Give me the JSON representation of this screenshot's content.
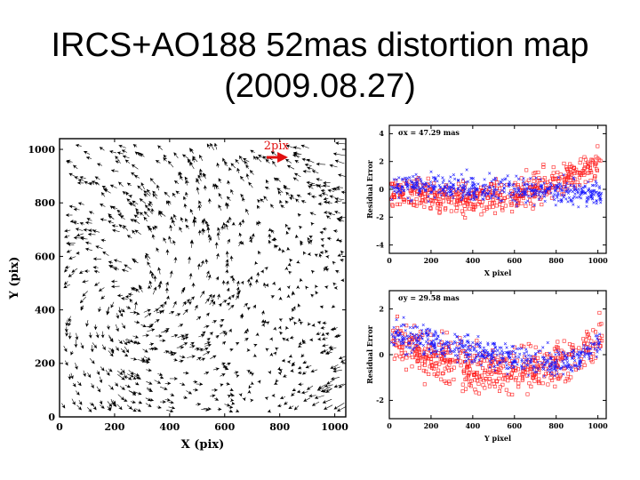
{
  "slide": {
    "title_line1": "IRCS+AO188 52mas distortion map",
    "title_line2": "(2009.08.27)"
  },
  "colors": {
    "ink": "#000000",
    "red": "#ff2020",
    "blue": "#1a1aff",
    "scale_arrow": "#e01010"
  },
  "chart_data": [
    {
      "type": "vector-field",
      "xlabel": "X (pix)",
      "ylabel": "Y (pix)",
      "xlim": [
        0,
        1040
      ],
      "ylim": [
        0,
        1040
      ],
      "xticks": [
        "0",
        "200",
        "400",
        "600",
        "800",
        "1000"
      ],
      "yticks": [
        "0",
        "200",
        "400",
        "600",
        "800",
        "1000"
      ],
      "scale_label": "2pix",
      "scale_length_pix": 2,
      "marker": "arrow",
      "color": "#000000",
      "vector_scale_factor": 35,
      "pattern": "dense field of residual distortion vectors; left half curls/converges toward (250,420); lower right points up-right; top right points right",
      "vectors": []
    },
    {
      "type": "scatter",
      "annotation": "σx = 47.29 mas",
      "xlabel": "X pixel",
      "ylabel": "Residual Error",
      "xlim": [
        0,
        1040
      ],
      "ylim": [
        -4.6,
        4.6
      ],
      "xticks": [
        "0",
        "200",
        "400",
        "600",
        "800",
        "1000"
      ],
      "yticks": [
        "-4",
        "-2",
        "0",
        "2",
        "4"
      ],
      "series": [
        {
          "marker": "open-square",
          "color": "#ff2020",
          "trend": [
            [
              0,
              -0.1
            ],
            [
              150,
              -0.4
            ],
            [
              300,
              -0.6
            ],
            [
              450,
              -0.6
            ],
            [
              600,
              -0.35
            ],
            [
              750,
              0.25
            ],
            [
              900,
              1.1
            ],
            [
              1020,
              2.0
            ]
          ],
          "spread": 0.55
        },
        {
          "marker": "cross",
          "color": "#1a1aff",
          "trend": [
            [
              0,
              0.2
            ],
            [
              200,
              0.15
            ],
            [
              400,
              0.05
            ],
            [
              600,
              0.0
            ],
            [
              800,
              -0.15
            ],
            [
              1020,
              -0.3
            ]
          ],
          "spread": 0.45
        }
      ]
    },
    {
      "type": "scatter",
      "annotation": "σy = 29.58 mas",
      "xlabel": "Y pixel",
      "ylabel": "Residual Error",
      "xlim": [
        0,
        1040
      ],
      "ylim": [
        -2.8,
        2.8
      ],
      "xticks": [
        "0",
        "200",
        "400",
        "600",
        "800",
        "1000"
      ],
      "yticks": [
        "-2",
        "0",
        "2"
      ],
      "series": [
        {
          "marker": "open-square",
          "color": "#ff2020",
          "trend": [
            [
              0,
              0.8
            ],
            [
              150,
              0.15
            ],
            [
              300,
              -0.35
            ],
            [
              450,
              -0.65
            ],
            [
              600,
              -0.75
            ],
            [
              750,
              -0.55
            ],
            [
              850,
              -0.25
            ],
            [
              950,
              0.25
            ],
            [
              1020,
              0.8
            ]
          ],
          "spread": 0.5
        },
        {
          "marker": "cross",
          "color": "#1a1aff",
          "trend": [
            [
              0,
              0.85
            ],
            [
              200,
              0.55
            ],
            [
              400,
              0.2
            ],
            [
              600,
              -0.15
            ],
            [
              800,
              -0.45
            ],
            [
              900,
              -0.25
            ],
            [
              1020,
              0.6
            ]
          ],
          "spread": 0.3
        }
      ]
    }
  ]
}
